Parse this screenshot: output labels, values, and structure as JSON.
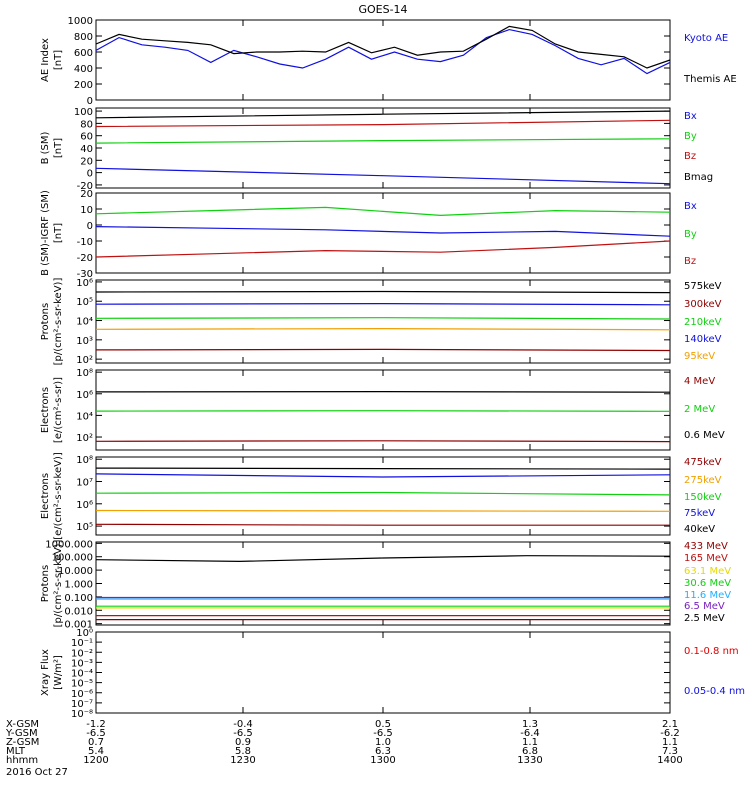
{
  "title": "GOES-14",
  "date_label": "2016 Oct 27",
  "colors": {
    "black": "#000000",
    "blue": "#1010e0",
    "green": "#10d010",
    "red": "#c01010",
    "darkred": "#900000",
    "orange": "#f0a000",
    "cyan": "#20b0ff",
    "purple": "#7a20c0",
    "yellow": "#e8d800",
    "brightred": "#e00000"
  },
  "ephemeris": {
    "row_labels": [
      "X-GSM",
      "Y-GSM",
      "Z-GSM",
      "MLT",
      "hhmm"
    ],
    "columns": [
      {
        "x": "-1.2",
        "y": "-6.5",
        "z": "0.7",
        "mlt": "5.4",
        "hhmm": "1200"
      },
      {
        "x": "-0.4",
        "y": "-6.5",
        "z": "0.9",
        "mlt": "5.8",
        "hhmm": "1230"
      },
      {
        "x": "0.5",
        "y": "-6.5",
        "z": "1.0",
        "mlt": "6.3",
        "hhmm": "1300"
      },
      {
        "x": "1.3",
        "y": "-6.4",
        "z": "1.1",
        "mlt": "6.8",
        "hhmm": "1330"
      },
      {
        "x": "2.1",
        "y": "-6.2",
        "z": "1.1",
        "mlt": "7.3",
        "hhmm": "1400"
      }
    ]
  },
  "chart_data": [
    {
      "type": "line",
      "panel": "ae",
      "ylabel": [
        "AE Index",
        "[nT]"
      ],
      "yticks": [
        "0",
        "200",
        "400",
        "600",
        "800",
        "1000"
      ],
      "ylim": [
        0,
        1000
      ],
      "series": [
        {
          "name": "Kyoto AE",
          "color": "blue",
          "x": [
            0,
            4,
            8,
            12,
            16,
            20,
            24,
            28,
            32,
            36,
            40,
            44,
            48,
            52,
            56,
            60,
            64,
            68,
            72,
            76,
            80,
            84,
            88,
            92,
            96,
            100
          ],
          "values": [
            620,
            780,
            690,
            660,
            620,
            470,
            620,
            540,
            450,
            400,
            510,
            660,
            510,
            600,
            510,
            480,
            560,
            780,
            880,
            820,
            680,
            520,
            440,
            520,
            330,
            470
          ]
        },
        {
          "name": "Themis AE",
          "color": "black",
          "x": [
            0,
            4,
            8,
            12,
            16,
            20,
            24,
            28,
            32,
            36,
            40,
            44,
            48,
            52,
            56,
            60,
            64,
            68,
            72,
            76,
            80,
            84,
            88,
            92,
            96,
            100
          ],
          "values": [
            700,
            820,
            760,
            740,
            720,
            690,
            580,
            600,
            600,
            610,
            600,
            720,
            590,
            660,
            560,
            600,
            610,
            760,
            920,
            870,
            700,
            600,
            570,
            540,
            400,
            500
          ]
        }
      ]
    },
    {
      "type": "line",
      "panel": "bsm",
      "ylabel": [
        "B (SM)",
        "[nT]"
      ],
      "yticks": [
        "-20",
        "0",
        "20",
        "40",
        "60",
        "80",
        "100"
      ],
      "ylim": [
        -25,
        105
      ],
      "series": [
        {
          "name": "Bx",
          "color": "blue",
          "x": [
            0,
            50,
            100
          ],
          "values": [
            7,
            -5,
            -18
          ]
        },
        {
          "name": "By",
          "color": "green",
          "x": [
            0,
            50,
            100
          ],
          "values": [
            48,
            52,
            55
          ]
        },
        {
          "name": "Bz",
          "color": "red",
          "x": [
            0,
            50,
            100
          ],
          "values": [
            75,
            78,
            85
          ]
        },
        {
          "name": "Bmag",
          "color": "black",
          "x": [
            0,
            50,
            100
          ],
          "values": [
            89,
            95,
            100
          ]
        }
      ]
    },
    {
      "type": "line",
      "panel": "bigrf",
      "ylabel": [
        "B (SM)-IGRF (SM)",
        "[nT]"
      ],
      "yticks": [
        "-30",
        "-20",
        "-10",
        "0",
        "10",
        "20"
      ],
      "ylim": [
        -30,
        20
      ],
      "series": [
        {
          "name": "Bx",
          "color": "blue",
          "x": [
            0,
            20,
            40,
            60,
            80,
            100
          ],
          "values": [
            -1,
            -2,
            -3,
            -5,
            -4,
            -7
          ]
        },
        {
          "name": "By",
          "color": "green",
          "x": [
            0,
            20,
            40,
            60,
            80,
            100
          ],
          "values": [
            7,
            9,
            11,
            6,
            9,
            8
          ]
        },
        {
          "name": "Bz",
          "color": "red",
          "x": [
            0,
            20,
            40,
            60,
            80,
            100
          ],
          "values": [
            -20,
            -18,
            -16,
            -17,
            -14,
            -10
          ]
        }
      ]
    },
    {
      "type": "line",
      "panel": "protons_lo",
      "ylabel": [
        "Protons",
        "[p/(cm²-s-sr-keV)]"
      ],
      "ytick_exponents": [
        2,
        3,
        4,
        5,
        6
      ],
      "ylim_log10": [
        1.8,
        6.1
      ],
      "series": [
        {
          "name": "575keV",
          "color": "black",
          "x": [
            0,
            50,
            100
          ],
          "values": [
            300000.0,
            320000.0,
            280000.0
          ]
        },
        {
          "name": "300keV",
          "color": "darkred",
          "x": [
            0,
            50,
            100
          ],
          "values": [
            300.0,
            320.0,
            280.0
          ]
        },
        {
          "name": "210keV",
          "color": "green",
          "x": [
            0,
            50,
            100
          ],
          "values": [
            13000.0,
            14000.0,
            12000.0
          ]
        },
        {
          "name": "140keV",
          "color": "blue",
          "x": [
            0,
            50,
            100
          ],
          "values": [
            70000.0,
            75000.0,
            65000.0
          ]
        },
        {
          "name": "95keV",
          "color": "orange",
          "x": [
            0,
            50,
            100
          ],
          "values": [
            3500.0,
            3800.0,
            3300.0
          ]
        }
      ]
    },
    {
      "type": "line",
      "panel": "electrons_mev",
      "ylabel": [
        "Electrons",
        "[e/(cm²-s-sr)]"
      ],
      "ytick_exponents": [
        0,
        2,
        4,
        6,
        8
      ],
      "ylim_log10": [
        0.8,
        8.2
      ],
      "series": [
        {
          "name": "4 MeV",
          "color": "darkred",
          "x": [
            0,
            50,
            100
          ],
          "values": [
            40,
            45,
            38
          ]
        },
        {
          "name": "2 MeV",
          "color": "green",
          "x": [
            0,
            50,
            100
          ],
          "values": [
            25000.0,
            27000.0,
            24000.0
          ]
        },
        {
          "name": "0.6 MeV",
          "color": "black",
          "x": [
            0,
            50,
            100
          ],
          "values": [
            1500000.0,
            1600000.0,
            1400000.0
          ]
        }
      ]
    },
    {
      "type": "line",
      "panel": "electrons_kev",
      "ylabel": [
        "Electrons",
        "[e/(cm²-s-sr-keV)]"
      ],
      "ytick_exponents": [
        4,
        5,
        6,
        7,
        8
      ],
      "ylim_log10": [
        4.6,
        8.1
      ],
      "series": [
        {
          "name": "475keV",
          "color": "darkred",
          "x": [
            0,
            50,
            100
          ],
          "values": [
            120000.0,
            110000.0,
            110000.0
          ]
        },
        {
          "name": "275keV",
          "color": "orange",
          "x": [
            0,
            50,
            100
          ],
          "values": [
            500000.0,
            480000.0,
            460000.0
          ]
        },
        {
          "name": "150keV",
          "color": "green",
          "x": [
            0,
            50,
            100
          ],
          "values": [
            3000000.0,
            3200000.0,
            2500000.0
          ]
        },
        {
          "name": "75keV",
          "color": "blue",
          "x": [
            0,
            50,
            100
          ],
          "values": [
            22000000.0,
            16000000.0,
            20000000.0
          ]
        },
        {
          "name": "40keV",
          "color": "black",
          "x": [
            0,
            50,
            100
          ],
          "values": [
            40000000.0,
            38000000.0,
            36000000.0
          ]
        }
      ]
    },
    {
      "type": "line",
      "panel": "protons_hi",
      "ylabel": [
        "Protons",
        "[p/(cm²-s-sr-keV)]"
      ],
      "yticks": [
        "0.001",
        "0.010",
        "0.100",
        "1.000",
        "10.000",
        "100.000",
        "1000.000"
      ],
      "ylim_log10": [
        -3.1,
        3.1
      ],
      "series": [
        {
          "name": "433 MeV",
          "color": "darkred",
          "x": [
            0,
            50,
            100
          ],
          "values": [
            0.002,
            0.002,
            0.002
          ]
        },
        {
          "name": "165 MeV",
          "color": "red",
          "x": [
            0,
            50,
            100
          ],
          "values": [
            0.004,
            0.004,
            0.004
          ]
        },
        {
          "name": "63.1 MeV",
          "color": "yellow",
          "x": [
            0,
            50,
            100
          ],
          "values": [
            0.015,
            0.015,
            0.015
          ]
        },
        {
          "name": "30.6 MeV",
          "color": "green",
          "x": [
            0,
            50,
            100
          ],
          "values": [
            0.02,
            0.02,
            0.02
          ]
        },
        {
          "name": "11.6 MeV",
          "color": "cyan",
          "x": [
            0,
            50,
            100
          ],
          "values": [
            0.07,
            0.07,
            0.07
          ]
        },
        {
          "name": "6.5 MeV",
          "color": "purple",
          "x": [
            0,
            50,
            100
          ],
          "values": [
            0.09,
            0.09,
            0.09
          ]
        },
        {
          "name": "2.5 MeV",
          "color": "black",
          "x": [
            0,
            25,
            50,
            75,
            100
          ],
          "values": [
            60,
            45,
            80,
            120,
            110
          ]
        }
      ]
    },
    {
      "type": "line",
      "panel": "xray",
      "ylabel": [
        "Xray Flux",
        "[W/m²]"
      ],
      "ytick_exponents": [
        -8,
        -7,
        -6,
        -5,
        -4,
        -3,
        -2,
        -1,
        0
      ],
      "ylim_log10": [
        -8,
        0
      ],
      "series": [
        {
          "name": "0.1-0.8 nm",
          "color": "brightred",
          "x": [],
          "values": []
        },
        {
          "name": "0.05-0.4 nm",
          "color": "blue",
          "x": [],
          "values": []
        }
      ]
    }
  ]
}
